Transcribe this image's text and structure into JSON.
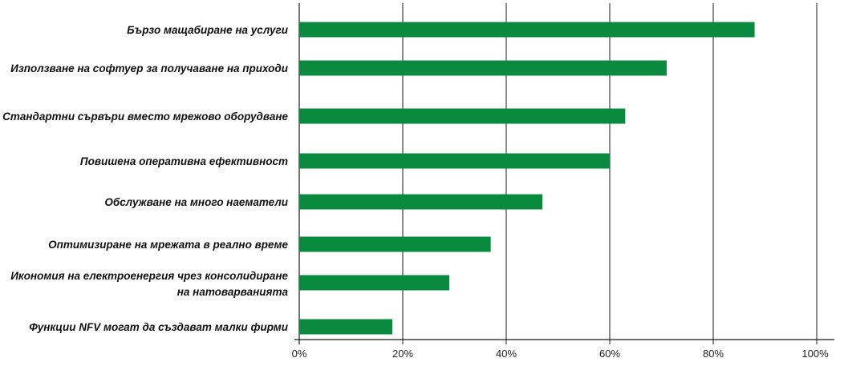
{
  "chart_data": {
    "type": "bar",
    "orientation": "horizontal",
    "categories": [
      "Бързо мащабиране на услуги",
      "Използване на софтуер за получаване на приходи",
      "Стандартни сървъри вместо мрежово оборудване",
      "Повишена оперативна ефективност",
      "Обслужване на много наематели",
      "Оптимизиране на мрежата в реално време",
      "Икономия на електроенергия чрез консолидиране на натоварванията",
      "Функции NFV могат да създават малки фирми"
    ],
    "values": [
      88,
      71,
      63,
      60,
      47,
      37,
      29,
      18
    ],
    "xlim": [
      0,
      100
    ],
    "ticks": [
      "0%",
      "20%",
      "40%",
      "60%",
      "80%",
      "100%"
    ],
    "grid": true,
    "bar_color": "#0a8a3f"
  }
}
